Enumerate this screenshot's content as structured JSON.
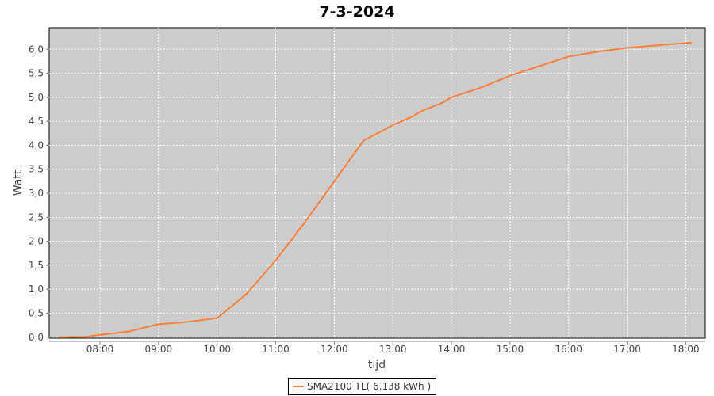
{
  "chart_data": {
    "type": "line",
    "title": "7-3-2024",
    "xlabel": "tijd",
    "ylabel": "Watt",
    "xlim": [
      "07:08",
      "18:20"
    ],
    "ylim": [
      -0.02,
      6.45
    ],
    "x_ticks": [
      "08:00",
      "09:00",
      "10:00",
      "11:00",
      "12:00",
      "13:00",
      "14:00",
      "15:00",
      "16:00",
      "17:00",
      "18:00"
    ],
    "y_ticks": [
      "0,0",
      "0,5",
      "1,0",
      "1,5",
      "2,0",
      "2,5",
      "3,0",
      "3,5",
      "4,0",
      "4,5",
      "5,0",
      "5,5",
      "6,0"
    ],
    "grid": true,
    "legend_placement": "bottom",
    "colors": {
      "series": "#ff7f3a",
      "plot_background": "#cccccc",
      "grid": "#ffffff"
    },
    "series": [
      {
        "name": "SMA2100 TL( 6,138 kWh )",
        "x": [
          "07:18",
          "07:45",
          "08:00",
          "08:30",
          "08:45",
          "09:00",
          "09:30",
          "10:00",
          "10:30",
          "11:00",
          "11:30",
          "12:00",
          "12:30",
          "12:35",
          "13:00",
          "13:20",
          "13:30",
          "13:50",
          "14:00",
          "14:30",
          "15:00",
          "15:30",
          "16:00",
          "16:30",
          "17:00",
          "17:30",
          "18:00",
          "18:06"
        ],
        "values": [
          0.0,
          0.01,
          0.05,
          0.12,
          0.2,
          0.27,
          0.32,
          0.4,
          0.9,
          1.6,
          2.4,
          3.25,
          4.1,
          4.15,
          4.42,
          4.6,
          4.72,
          4.88,
          5.0,
          5.2,
          5.45,
          5.65,
          5.85,
          5.95,
          6.03,
          6.08,
          6.13,
          6.14
        ]
      }
    ]
  }
}
